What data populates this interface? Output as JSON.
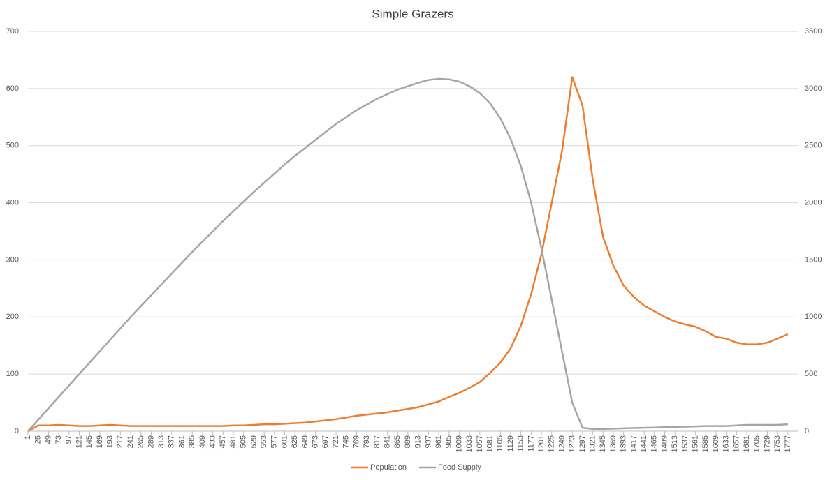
{
  "chart_data": {
    "type": "line",
    "title": "Simple Grazers",
    "x": [
      1,
      25,
      49,
      73,
      97,
      121,
      145,
      169,
      193,
      217,
      241,
      265,
      289,
      313,
      337,
      361,
      385,
      409,
      433,
      457,
      481,
      505,
      529,
      553,
      577,
      601,
      625,
      649,
      673,
      697,
      721,
      745,
      769,
      793,
      817,
      841,
      865,
      889,
      913,
      937,
      961,
      985,
      1009,
      1033,
      1057,
      1081,
      1105,
      1129,
      1153,
      1177,
      1201,
      1225,
      1249,
      1273,
      1297,
      1321,
      1345,
      1369,
      1393,
      1417,
      1441,
      1465,
      1489,
      1513,
      1537,
      1561,
      1585,
      1609,
      1633,
      1657,
      1681,
      1705,
      1729,
      1753,
      1777
    ],
    "xlim": [
      1,
      1800
    ],
    "ylim": [
      0,
      700
    ],
    "yticks": [
      0,
      100,
      200,
      300,
      400,
      500,
      600,
      700
    ],
    "y2lim": [
      0,
      3500
    ],
    "y2ticks": [
      0,
      500,
      1000,
      1500,
      2000,
      2500,
      3000,
      3500
    ],
    "grid": true,
    "legend": "bottom",
    "series": [
      {
        "name": "Population",
        "color": "#ed7d31",
        "values": [
          0,
          10,
          10,
          11,
          10,
          9,
          9,
          10,
          11,
          10,
          9,
          9,
          9,
          9,
          9,
          9,
          9,
          9,
          9,
          9,
          10,
          10,
          11,
          12,
          12,
          13,
          14,
          15,
          17,
          19,
          21,
          24,
          27,
          29,
          31,
          33,
          36,
          39,
          42,
          47,
          52,
          60,
          67,
          76,
          86,
          102,
          120,
          145,
          185,
          240,
          310,
          400,
          490,
          620,
          570,
          440,
          340,
          290,
          255,
          235,
          220,
          210,
          200,
          192,
          187,
          183,
          175,
          165,
          162,
          155,
          152,
          152,
          155,
          162,
          170
        ]
      },
      {
        "name": "Food Supply",
        "color": "#a5a5a5",
        "axis": "y2",
        "values": [
          0,
          100,
          200,
          300,
          400,
          500,
          600,
          700,
          800,
          900,
          1000,
          1095,
          1190,
          1285,
          1380,
          1475,
          1570,
          1660,
          1750,
          1840,
          1925,
          2010,
          2095,
          2175,
          2255,
          2335,
          2410,
          2480,
          2550,
          2620,
          2690,
          2750,
          2810,
          2860,
          2910,
          2950,
          2990,
          3020,
          3050,
          3075,
          3085,
          3080,
          3060,
          3020,
          2960,
          2870,
          2740,
          2560,
          2320,
          2000,
          1600,
          1150,
          700,
          250,
          30,
          20,
          20,
          22,
          25,
          28,
          30,
          32,
          35,
          38,
          40,
          42,
          45,
          45,
          45,
          50,
          55,
          55,
          55,
          55,
          60
        ]
      }
    ]
  }
}
